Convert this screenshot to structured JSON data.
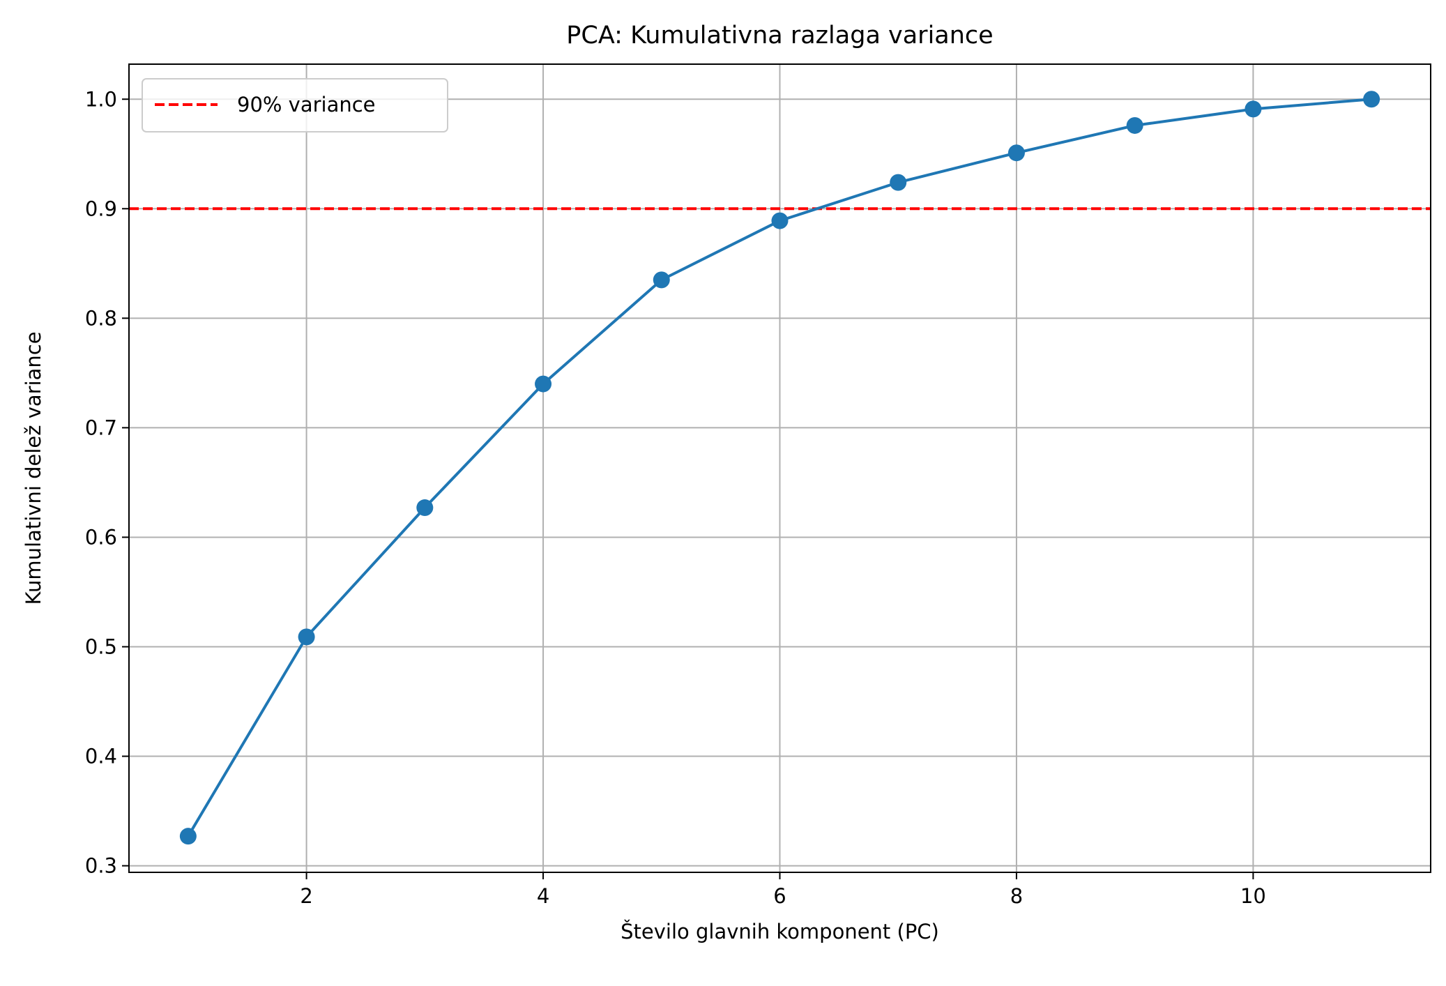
{
  "chart_data": {
    "type": "line",
    "title": "PCA: Kumulativna razlaga variance",
    "xlabel": "Število glavnih komponent (PC)",
    "ylabel": "Kumulativni delež variance",
    "xlim": [
      0.5,
      11.5
    ],
    "ylim": [
      0.294,
      1.032
    ],
    "x_ticks": [
      2,
      4,
      6,
      8,
      10
    ],
    "y_ticks": [
      0.3,
      0.4,
      0.5,
      0.6,
      0.7,
      0.8,
      0.9,
      1.0
    ],
    "x_tick_labels": [
      "2",
      "4",
      "6",
      "8",
      "10"
    ],
    "y_tick_labels": [
      "0.3",
      "0.4",
      "0.5",
      "0.6",
      "0.7",
      "0.8",
      "0.9",
      "1.0"
    ],
    "grid": true,
    "legend_position": "top-left",
    "series": [
      {
        "x": [
          1,
          2,
          3,
          4,
          5,
          6,
          7,
          8,
          9,
          10,
          11
        ],
        "values": [
          0.327,
          0.509,
          0.627,
          0.74,
          0.835,
          0.889,
          0.924,
          0.951,
          0.976,
          0.991,
          1.0
        ],
        "color": "#1f77b4",
        "marker": "circle"
      }
    ],
    "reference_lines": [
      {
        "y": 0.9,
        "name": "90% variance",
        "color": "#ff0000",
        "style": "dashed"
      }
    ]
  }
}
